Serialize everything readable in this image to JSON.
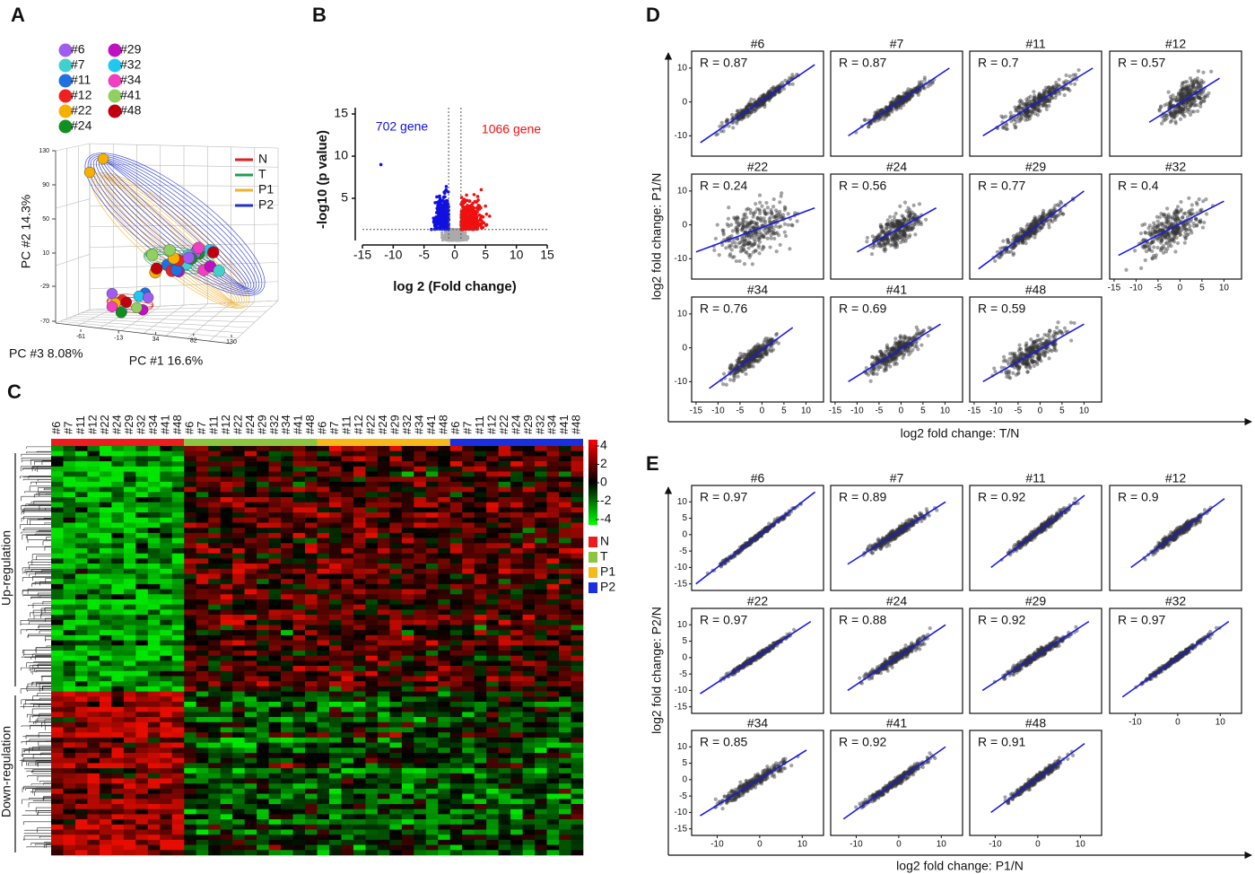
{
  "chart_data": [
    {
      "panel": "A",
      "type": "pca3d",
      "samples": {
        "names": [
          "#6",
          "#7",
          "#11",
          "#12",
          "#22",
          "#24",
          "#29",
          "#32",
          "#34",
          "#41",
          "#48"
        ],
        "colors": [
          "#a05cf0",
          "#40d0d0",
          "#2070e0",
          "#f02020",
          "#f8b000",
          "#109020",
          "#c010c0",
          "#20c8f0",
          "#f040c0",
          "#90d060",
          "#c00010"
        ]
      },
      "series": [
        {
          "name": "N",
          "color": "#e02020"
        },
        {
          "name": "T",
          "color": "#20a050"
        },
        {
          "name": "P1",
          "color": "#f0b030"
        },
        {
          "name": "P2",
          "color": "#2030d0"
        }
      ],
      "xlabel": "PC #1 16.6%",
      "ylabel": "PC #2 14.3%",
      "zlabel": "PC #3 8.08%",
      "ylim": [
        -70,
        130
      ],
      "yticks": [
        130,
        90,
        50,
        10,
        -29,
        -70
      ],
      "xlim": [
        -61,
        130
      ],
      "xticks": [
        -61,
        -13,
        34,
        82,
        130
      ]
    },
    {
      "panel": "B",
      "type": "volcano",
      "xlim": [
        -15,
        15
      ],
      "xticks": [
        -15,
        -10,
        -5,
        0,
        5,
        10,
        15
      ],
      "ylim": [
        0,
        15
      ],
      "yticks": [
        5,
        10,
        15
      ],
      "xlabel": "log 2 (Fold change)",
      "ylabel": "-log10 (p value)",
      "series": [
        {
          "name": "702 gene",
          "color": "#1010e0"
        },
        {
          "name": "1066 gene",
          "color": "#f01010"
        }
      ],
      "thresholds": {
        "x": [
          -1,
          1
        ],
        "y": 1.3
      }
    },
    {
      "panel": "C",
      "type": "heatmap",
      "columns": [
        "#6",
        "#7",
        "#11",
        "#12",
        "#22",
        "#24",
        "#29",
        "#32",
        "#34",
        "#41",
        "#48"
      ],
      "series": [
        {
          "name": "N",
          "color": "#ee1c1c"
        },
        {
          "name": "T",
          "color": "#8cc63f"
        },
        {
          "name": "P1",
          "color": "#f7b917"
        },
        {
          "name": "P2",
          "color": "#1a2fe0"
        }
      ],
      "zlim": [
        -4,
        4
      ],
      "zticks": [
        4,
        2,
        0,
        -2,
        -4
      ],
      "row_groups": [
        "Up-regulation",
        "Down-regulation"
      ]
    },
    {
      "panel": "D",
      "type": "scatter-facets",
      "facets": [
        "#6",
        "#7",
        "#11",
        "#12",
        "#22",
        "#24",
        "#29",
        "#32",
        "#34",
        "#41",
        "#48"
      ],
      "values": [
        0.87,
        0.87,
        0.7,
        0.57,
        0.24,
        0.56,
        0.77,
        0.4,
        0.76,
        0.69,
        0.59
      ],
      "value_labels": [
        "R = 0.87",
        "R = 0.87",
        "R = 0.7",
        "R = 0.57",
        "R = 0.24",
        "R = 0.56",
        "R = 0.77",
        "R = 0.4",
        "R = 0.76",
        "R = 0.69",
        "R = 0.59"
      ],
      "fits": [
        {
          "x": [
            -14,
            12
          ],
          "y": [
            -12,
            11
          ]
        },
        {
          "x": [
            -12,
            11
          ],
          "y": [
            -10,
            10
          ]
        },
        {
          "x": [
            -13,
            12
          ],
          "y": [
            -10,
            10
          ]
        },
        {
          "x": [
            -7,
            9
          ],
          "y": [
            -6,
            7
          ]
        },
        {
          "x": [
            -15,
            12
          ],
          "y": [
            -8,
            5
          ]
        },
        {
          "x": [
            -10,
            8
          ],
          "y": [
            -8,
            5
          ]
        },
        {
          "x": [
            -14,
            10
          ],
          "y": [
            -13,
            10
          ]
        },
        {
          "x": [
            -14,
            10
          ],
          "y": [
            -9,
            7
          ]
        },
        {
          "x": [
            -12,
            7
          ],
          "y": [
            -12,
            6
          ]
        },
        {
          "x": [
            -12,
            9
          ],
          "y": [
            -10,
            7
          ]
        },
        {
          "x": [
            -13,
            10
          ],
          "y": [
            -10,
            7
          ]
        }
      ],
      "xlim": [
        -16,
        14
      ],
      "xticks": [
        -15,
        -10,
        -5,
        0,
        5,
        10
      ],
      "ylim": [
        -16,
        15
      ],
      "yticks": [
        10,
        0,
        -10
      ],
      "xlabel": "log2 fold change: T/N",
      "ylabel": "log2 fold change: P1/N",
      "point_color": "#333333",
      "line_color": "#1a1ae6"
    },
    {
      "panel": "E",
      "type": "scatter-facets",
      "facets": [
        "#6",
        "#7",
        "#11",
        "#12",
        "#22",
        "#24",
        "#29",
        "#32",
        "#34",
        "#41",
        "#48"
      ],
      "values": [
        0.97,
        0.89,
        0.92,
        0.9,
        0.97,
        0.88,
        0.92,
        0.97,
        0.85,
        0.92,
        0.91
      ],
      "value_labels": [
        "R = 0.97",
        "R = 0.89",
        "R = 0.92",
        "R = 0.9",
        "R = 0.97",
        "R = 0.88",
        "R = 0.92",
        "R = 0.97",
        "R = 0.85",
        "R = 0.92",
        "R = 0.91"
      ],
      "fits": [
        {
          "x": [
            -15,
            13
          ],
          "y": [
            -15,
            13
          ]
        },
        {
          "x": [
            -12,
            11
          ],
          "y": [
            -9,
            10
          ]
        },
        {
          "x": [
            -11,
            11
          ],
          "y": [
            -10,
            12
          ]
        },
        {
          "x": [
            -11,
            11
          ],
          "y": [
            -10,
            11
          ]
        },
        {
          "x": [
            -14,
            12
          ],
          "y": [
            -11,
            11
          ]
        },
        {
          "x": [
            -12,
            11
          ],
          "y": [
            -10,
            10
          ]
        },
        {
          "x": [
            -13,
            12
          ],
          "y": [
            -10,
            11
          ]
        },
        {
          "x": [
            -13,
            12
          ],
          "y": [
            -12,
            11
          ]
        },
        {
          "x": [
            -14,
            11
          ],
          "y": [
            -11,
            9
          ]
        },
        {
          "x": [
            -13,
            11
          ],
          "y": [
            -12,
            10
          ]
        },
        {
          "x": [
            -11,
            11
          ],
          "y": [
            -10,
            11
          ]
        }
      ],
      "xlim": [
        -16,
        15
      ],
      "xticks": [
        -10,
        0,
        10
      ],
      "ylim": [
        -17,
        15
      ],
      "yticks": [
        10,
        5,
        0,
        -5,
        -10,
        -15
      ],
      "xlabel": "log2 fold change: P1/N",
      "ylabel": "log2 fold change: P2/N",
      "point_color": "#333333",
      "line_color": "#1a1ae6"
    }
  ]
}
